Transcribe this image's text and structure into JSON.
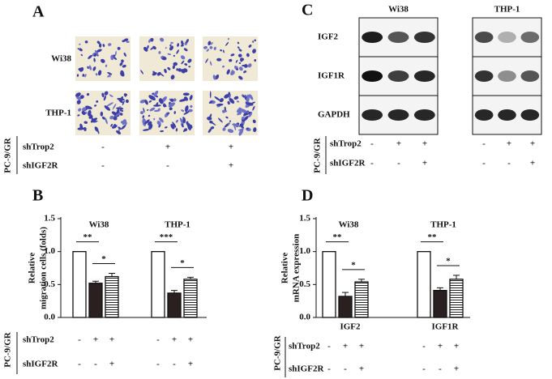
{
  "panels": {
    "A": {
      "letter": "A",
      "rows": [
        "Wi38",
        "THP-1"
      ],
      "treatments": {
        "label": "PC-9/GR",
        "rows": [
          {
            "name": "shTrop2",
            "marks": [
              "-",
              "+",
              "+"
            ]
          },
          {
            "name": "shIGF2R",
            "marks": [
              "-",
              "-",
              "+"
            ]
          }
        ]
      }
    },
    "C": {
      "letter": "C",
      "columns": [
        "Wi38",
        "THP-1"
      ],
      "rows": [
        "IGF2",
        "IGF1R",
        "GAPDH"
      ],
      "treatments": {
        "label": "PC-9/GR",
        "rows": [
          {
            "name": "shTrop2",
            "marks": [
              "-",
              "+",
              "+",
              "-",
              "+",
              "+"
            ]
          },
          {
            "name": "shIGF2R",
            "marks": [
              "-",
              "-",
              "+",
              "-",
              "-",
              "+"
            ]
          }
        ]
      }
    }
  },
  "chart_data": [
    {
      "type": "bar",
      "panel": "B",
      "ylabel": [
        "Relative",
        "migration cells (folds)"
      ],
      "group_labels": [
        "Wi38",
        "THP-1"
      ],
      "series": [
        {
          "color": "#ffffff",
          "values": [
            1.0,
            1.0
          ],
          "errors": [
            null,
            null
          ]
        },
        {
          "color": "#2b2020",
          "values": [
            0.52,
            0.37
          ],
          "errors": [
            0.03,
            0.04
          ]
        },
        {
          "color": "#ffffff",
          "hatch": "horizontal",
          "values": [
            0.62,
            0.58
          ],
          "errors": [
            0.05,
            0.03
          ]
        }
      ],
      "significance": [
        [
          "**",
          "*"
        ],
        [
          "***",
          "*"
        ]
      ],
      "ylim": [
        0,
        1.5
      ],
      "yticks": [
        {
          "value": 0,
          "label": "0.0"
        },
        0.5,
        {
          "value": 1,
          "label": "1.0"
        },
        1.5
      ],
      "treatments": {
        "label": "PC-9/GR",
        "rows": [
          {
            "name": "shTrop2",
            "marks": [
              "-",
              "+",
              "+",
              "-",
              "+",
              "+"
            ]
          },
          {
            "name": "shIGF2R",
            "marks": [
              "-",
              "-",
              "+",
              "-",
              "-",
              "+"
            ]
          }
        ]
      }
    },
    {
      "type": "bar",
      "panel": "D",
      "ylabel": [
        "Relative",
        "mRNA expression"
      ],
      "group_labels": [
        "Wi38",
        "THP-1"
      ],
      "categories": [
        "IGF2",
        "IGF1R"
      ],
      "series": [
        {
          "color": "#ffffff",
          "values": [
            1.0,
            1.0
          ],
          "errors": [
            null,
            null
          ]
        },
        {
          "color": "#2b2020",
          "values": [
            0.32,
            0.41
          ],
          "errors": [
            0.06,
            0.04
          ]
        },
        {
          "color": "#ffffff",
          "hatch": "horizontal",
          "values": [
            0.54,
            0.58
          ],
          "errors": [
            0.04,
            0.06
          ]
        }
      ],
      "significance": [
        [
          "**",
          "*"
        ],
        [
          "**",
          "*"
        ]
      ],
      "ylim": [
        0,
        1.5
      ],
      "yticks": [
        {
          "value": 0,
          "label": "0.0"
        },
        0.5,
        {
          "value": 1,
          "label": "1.0"
        },
        1.5
      ],
      "treatments": {
        "label": "PC-9/GR",
        "rows": [
          {
            "name": "shTrop2",
            "marks": [
              "-",
              "+",
              "+",
              "-",
              "+",
              "+"
            ]
          },
          {
            "name": "shIGF2R",
            "marks": [
              "-",
              "-",
              "+",
              "-",
              "-",
              "+"
            ]
          }
        ]
      }
    }
  ]
}
